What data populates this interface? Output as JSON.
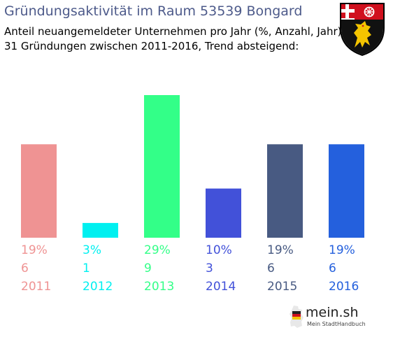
{
  "header": {
    "title": "Gründungsaktivität im Raum 53539 Bongard",
    "subtitle_line1": "Anteil neuangemeldeter Unternehmen pro Jahr (%, Anzahl, Jahr)",
    "subtitle_line2": "31 Gründungen zwischen 2011-2016, Trend absteigend:"
  },
  "crest_icon": "rhineland-palatinate-coat-of-arms-icon",
  "chart_data": {
    "type": "bar",
    "categories": [
      "2011",
      "2012",
      "2013",
      "2014",
      "2015",
      "2016"
    ],
    "values": [
      19,
      3,
      29,
      10,
      19,
      19
    ],
    "counts": [
      6,
      1,
      9,
      3,
      6,
      6
    ],
    "percent_labels": [
      "19%",
      "3%",
      "29%",
      "10%",
      "19%",
      "19%"
    ],
    "count_labels": [
      "6",
      "1",
      "9",
      "3",
      "6",
      "6"
    ],
    "colors": [
      "#ef9393",
      "#00f0f0",
      "#33ff88",
      "#4251d9",
      "#485a82",
      "#2460dd"
    ],
    "ylim": [
      0,
      29
    ],
    "grid": false
  },
  "branding": {
    "logo_text": "mein.sh",
    "logo_tagline": "Mein StadtHandbuch",
    "logo_icon": "germany-map-icon"
  }
}
